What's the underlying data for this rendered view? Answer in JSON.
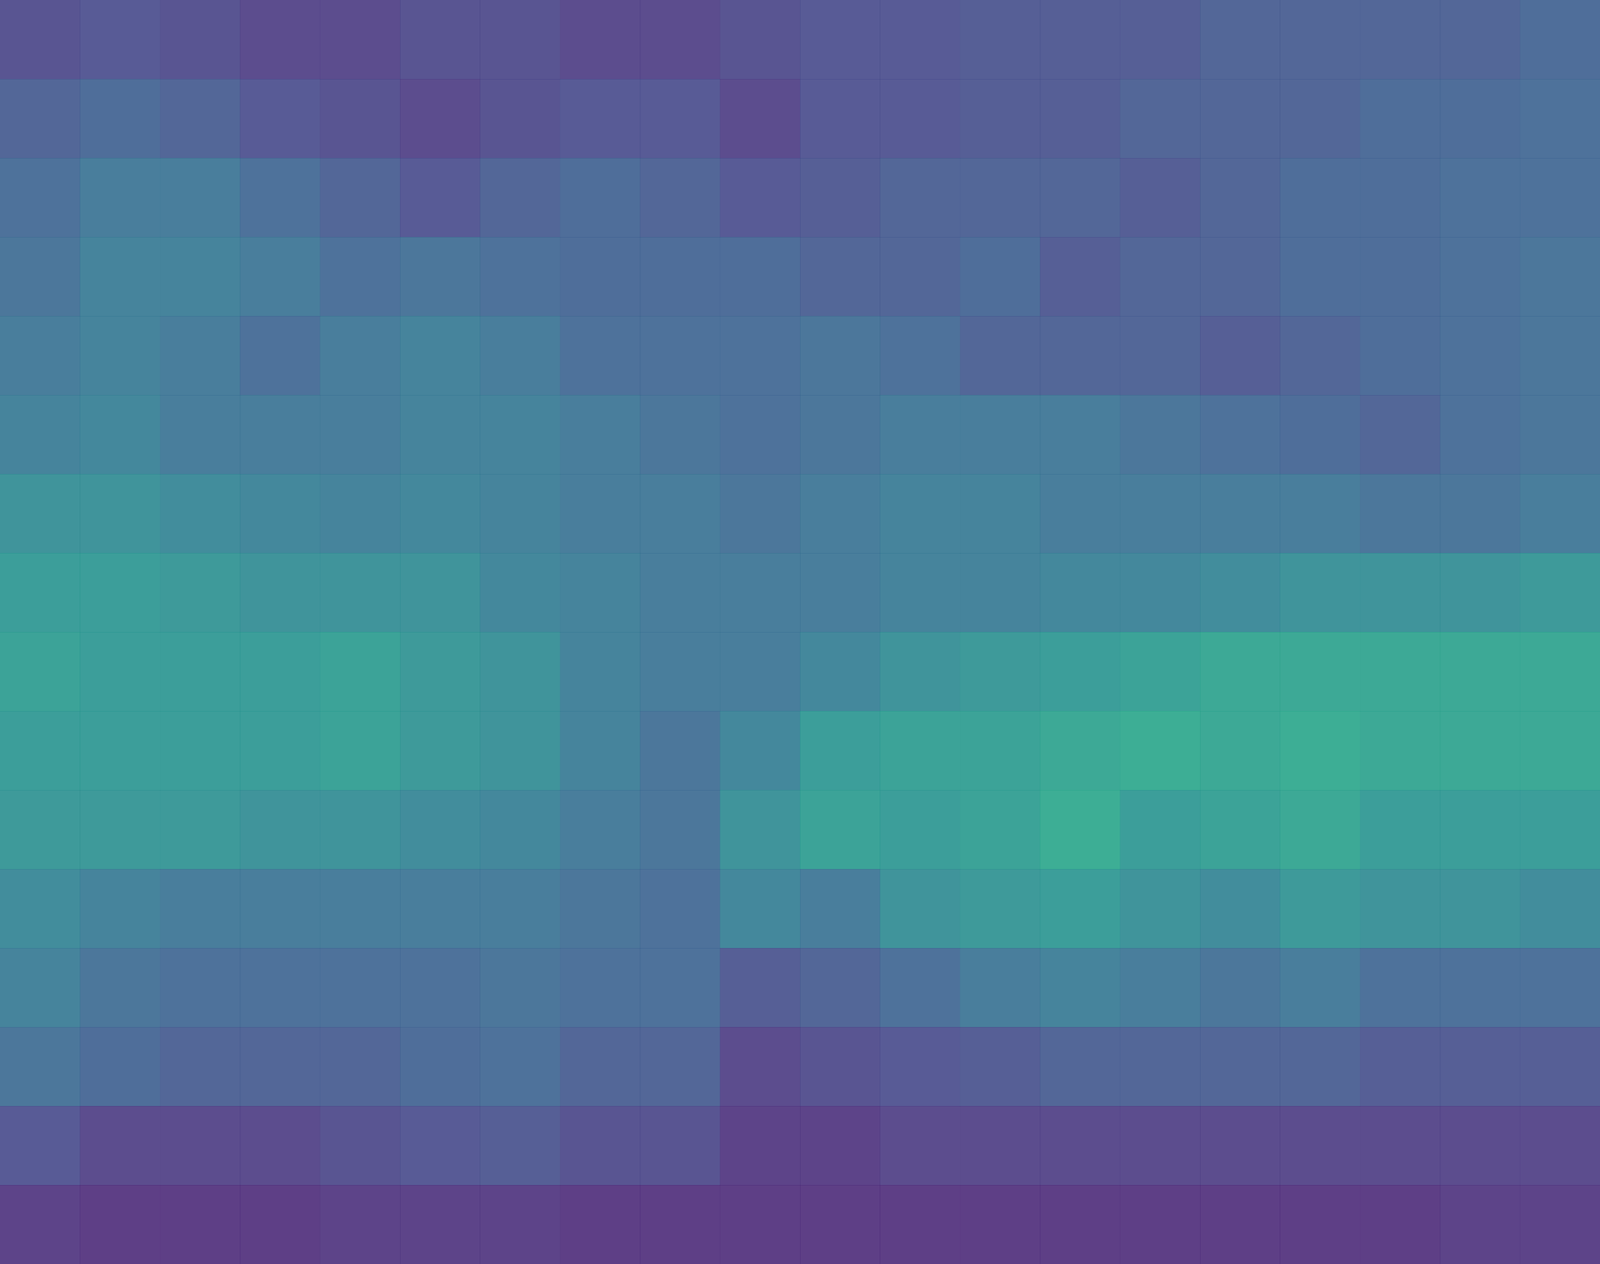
{
  "chart_data": {
    "type": "heatmap",
    "tick_labels": false,
    "zlim": [
      0,
      1
    ],
    "cells": [
      [
        0.18,
        0.2,
        0.18,
        0.15,
        0.15,
        0.18,
        0.18,
        0.15,
        0.15,
        0.18,
        0.2,
        0.2,
        0.22,
        0.22,
        0.22,
        0.25,
        0.25,
        0.25,
        0.25,
        0.28
      ],
      [
        0.25,
        0.28,
        0.25,
        0.2,
        0.18,
        0.15,
        0.18,
        0.2,
        0.2,
        0.15,
        0.2,
        0.2,
        0.22,
        0.22,
        0.25,
        0.25,
        0.25,
        0.28,
        0.28,
        0.3
      ],
      [
        0.3,
        0.35,
        0.35,
        0.3,
        0.25,
        0.2,
        0.25,
        0.28,
        0.25,
        0.2,
        0.22,
        0.25,
        0.25,
        0.25,
        0.22,
        0.25,
        0.28,
        0.28,
        0.3,
        0.3
      ],
      [
        0.32,
        0.38,
        0.38,
        0.35,
        0.3,
        0.32,
        0.3,
        0.28,
        0.28,
        0.28,
        0.25,
        0.25,
        0.28,
        0.22,
        0.25,
        0.25,
        0.28,
        0.28,
        0.3,
        0.32
      ],
      [
        0.35,
        0.38,
        0.35,
        0.3,
        0.35,
        0.38,
        0.35,
        0.3,
        0.3,
        0.3,
        0.32,
        0.3,
        0.25,
        0.25,
        0.25,
        0.22,
        0.25,
        0.28,
        0.3,
        0.32
      ],
      [
        0.38,
        0.4,
        0.35,
        0.35,
        0.35,
        0.38,
        0.38,
        0.35,
        0.32,
        0.3,
        0.32,
        0.35,
        0.35,
        0.35,
        0.32,
        0.3,
        0.28,
        0.25,
        0.3,
        0.32
      ],
      [
        0.45,
        0.45,
        0.42,
        0.4,
        0.38,
        0.4,
        0.38,
        0.35,
        0.35,
        0.32,
        0.35,
        0.38,
        0.38,
        0.35,
        0.35,
        0.35,
        0.35,
        0.32,
        0.32,
        0.35
      ],
      [
        0.5,
        0.5,
        0.48,
        0.45,
        0.45,
        0.45,
        0.4,
        0.38,
        0.35,
        0.35,
        0.35,
        0.38,
        0.38,
        0.4,
        0.4,
        0.42,
        0.45,
        0.45,
        0.45,
        0.48
      ],
      [
        0.52,
        0.5,
        0.5,
        0.5,
        0.52,
        0.48,
        0.45,
        0.38,
        0.35,
        0.35,
        0.4,
        0.45,
        0.48,
        0.5,
        0.52,
        0.55,
        0.55,
        0.55,
        0.55,
        0.55
      ],
      [
        0.5,
        0.5,
        0.5,
        0.5,
        0.52,
        0.48,
        0.45,
        0.38,
        0.32,
        0.4,
        0.5,
        0.52,
        0.52,
        0.55,
        0.58,
        0.55,
        0.58,
        0.55,
        0.55,
        0.55
      ],
      [
        0.48,
        0.48,
        0.48,
        0.45,
        0.45,
        0.42,
        0.4,
        0.35,
        0.32,
        0.45,
        0.52,
        0.5,
        0.52,
        0.58,
        0.5,
        0.52,
        0.55,
        0.5,
        0.5,
        0.5
      ],
      [
        0.42,
        0.38,
        0.35,
        0.35,
        0.35,
        0.35,
        0.35,
        0.32,
        0.3,
        0.4,
        0.35,
        0.45,
        0.48,
        0.5,
        0.45,
        0.42,
        0.48,
        0.45,
        0.45,
        0.42
      ],
      [
        0.38,
        0.32,
        0.3,
        0.3,
        0.3,
        0.3,
        0.32,
        0.3,
        0.3,
        0.22,
        0.25,
        0.3,
        0.35,
        0.38,
        0.35,
        0.32,
        0.35,
        0.3,
        0.3,
        0.3
      ],
      [
        0.32,
        0.28,
        0.25,
        0.25,
        0.25,
        0.28,
        0.3,
        0.25,
        0.25,
        0.15,
        0.18,
        0.2,
        0.22,
        0.25,
        0.25,
        0.25,
        0.25,
        0.22,
        0.22,
        0.22
      ],
      [
        0.2,
        0.15,
        0.15,
        0.15,
        0.18,
        0.2,
        0.22,
        0.18,
        0.18,
        0.12,
        0.12,
        0.15,
        0.15,
        0.15,
        0.15,
        0.15,
        0.15,
        0.15,
        0.15,
        0.15
      ],
      [
        0.12,
        0.1,
        0.1,
        0.1,
        0.12,
        0.12,
        0.12,
        0.1,
        0.1,
        0.1,
        0.1,
        0.1,
        0.1,
        0.1,
        0.1,
        0.1,
        0.1,
        0.1,
        0.12,
        0.12
      ]
    ]
  }
}
